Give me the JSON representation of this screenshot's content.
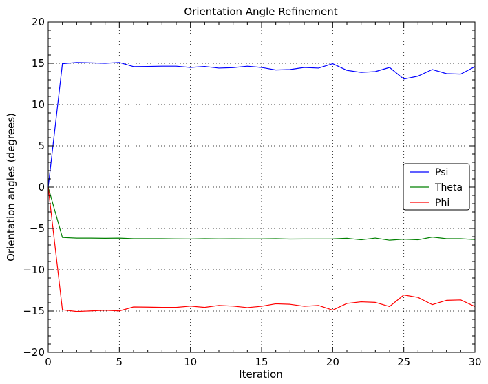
{
  "chart_data": {
    "type": "line",
    "title": "Orientation Angle Refinement",
    "xlabel": "Iteration",
    "ylabel": "Orientation angles (degrees)",
    "xlim": [
      0,
      30
    ],
    "ylim": [
      -20,
      20
    ],
    "xticks": [
      0,
      5,
      10,
      15,
      20,
      25,
      30
    ],
    "yticks": [
      -20,
      -15,
      -10,
      -5,
      0,
      5,
      10,
      15,
      20
    ],
    "xtick_labels": [
      "0",
      "5",
      "10",
      "15",
      "20",
      "25",
      "30"
    ],
    "ytick_labels": [
      "−20",
      "−15",
      "−10",
      "−5",
      "0",
      "5",
      "10",
      "15",
      "20"
    ],
    "grid": true,
    "legend_position": "center-right",
    "x": [
      0,
      1,
      2,
      3,
      4,
      5,
      6,
      7,
      8,
      9,
      10,
      11,
      12,
      13,
      14,
      15,
      16,
      17,
      18,
      19,
      20,
      21,
      22,
      23,
      24,
      25,
      26,
      27,
      28,
      29,
      30
    ],
    "series": [
      {
        "name": "Psi",
        "color": "#0000ff",
        "values": [
          0,
          14.95,
          15.1,
          15.05,
          15.0,
          15.1,
          14.6,
          14.62,
          14.65,
          14.65,
          14.5,
          14.62,
          14.42,
          14.48,
          14.65,
          14.5,
          14.2,
          14.25,
          14.5,
          14.42,
          14.95,
          14.15,
          13.9,
          14.0,
          14.5,
          13.1,
          13.45,
          14.25,
          13.75,
          13.7,
          14.6
        ]
      },
      {
        "name": "Theta",
        "color": "#008000",
        "values": [
          0,
          -6.1,
          -6.18,
          -6.18,
          -6.2,
          -6.18,
          -6.25,
          -6.25,
          -6.25,
          -6.27,
          -6.28,
          -6.25,
          -6.27,
          -6.26,
          -6.27,
          -6.27,
          -6.25,
          -6.29,
          -6.28,
          -6.28,
          -6.27,
          -6.2,
          -6.38,
          -6.17,
          -6.43,
          -6.3,
          -6.38,
          -6.05,
          -6.25,
          -6.25,
          -6.35
        ]
      },
      {
        "name": "Phi",
        "color": "#ff0000",
        "values": [
          0,
          -14.85,
          -15.05,
          -14.98,
          -14.9,
          -14.98,
          -14.5,
          -14.52,
          -14.55,
          -14.55,
          -14.4,
          -14.55,
          -14.32,
          -14.4,
          -14.58,
          -14.42,
          -14.12,
          -14.18,
          -14.42,
          -14.32,
          -14.88,
          -14.08,
          -13.88,
          -13.95,
          -14.45,
          -13.05,
          -13.35,
          -14.22,
          -13.7,
          -13.65,
          -14.45
        ]
      }
    ]
  }
}
